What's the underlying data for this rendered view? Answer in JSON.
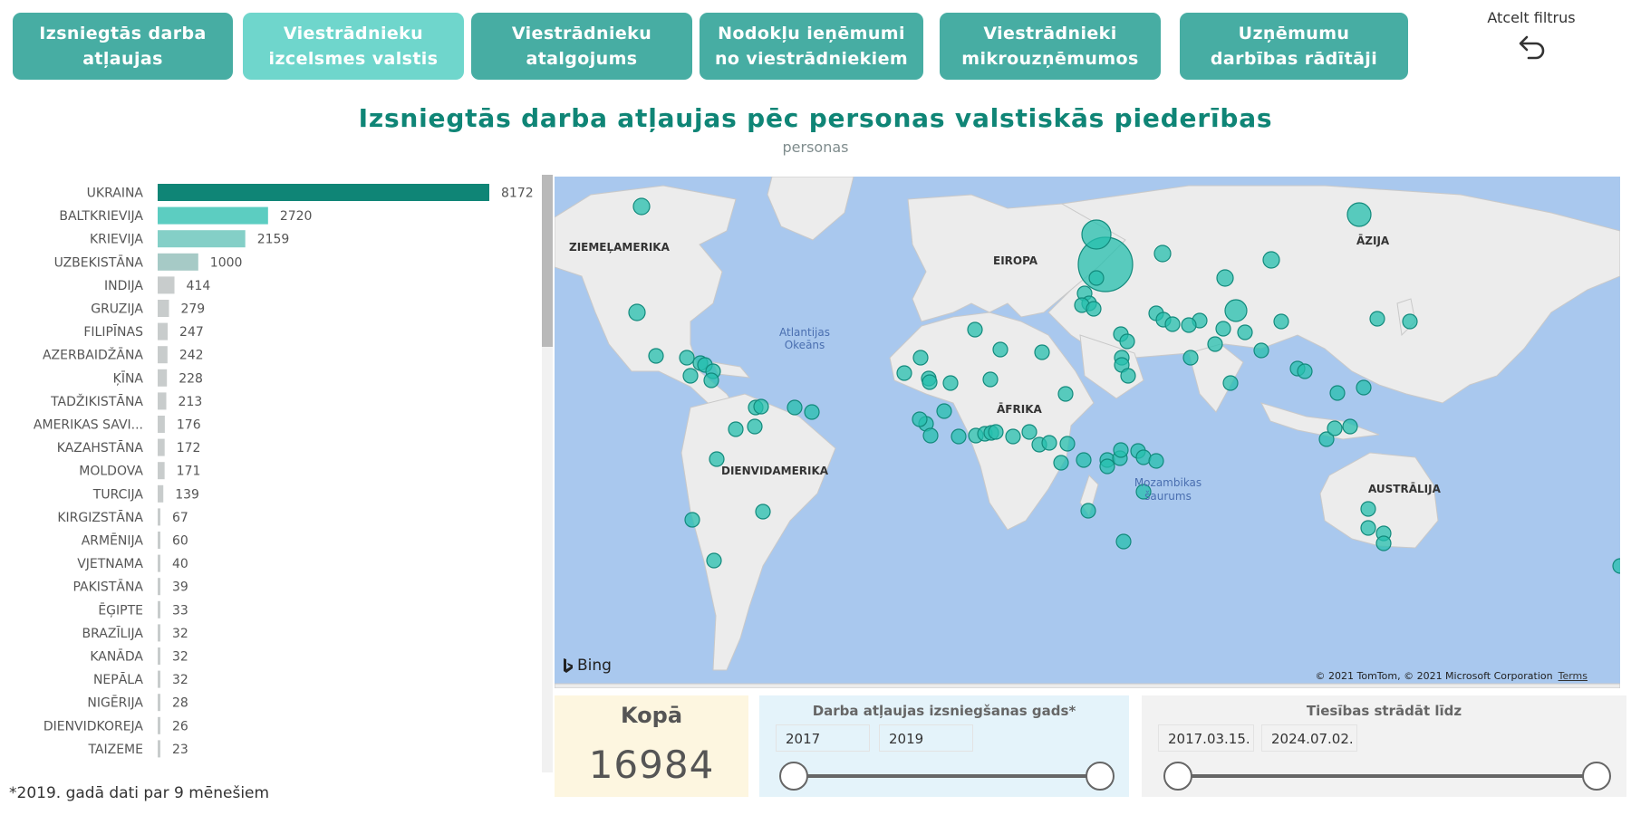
{
  "nav": {
    "tabs": [
      {
        "line1": "Izsniegtās darba",
        "line2": "atļaujas",
        "active": false
      },
      {
        "line1": "Viestrādnieku",
        "line2": "izcelsmes valstis",
        "active": true
      },
      {
        "line1": "Viestrādnieku",
        "line2": "atalgojums",
        "active": false
      },
      {
        "line1": "Nodokļu ieņēmumi",
        "line2": "no viestrādniekiem",
        "active": false
      },
      {
        "line1": "Viestrādnieki",
        "line2": "mikrouzņēmumos",
        "active": false
      },
      {
        "line1": "Uzņēmumu",
        "line2": "darbības rādītāji",
        "active": false
      }
    ],
    "reset_label": "Atcelt filtrus",
    "reset_icon": "undo-icon"
  },
  "header": {
    "title": "Izsniegtās darba atļaujas pēc personas valstiskās piederības",
    "subtitle": "personas"
  },
  "chart_data": {
    "type": "bar",
    "orientation": "horizontal",
    "categories": [
      "UKRAINA",
      "BALTKRIEVIJA",
      "KRIEVIJA",
      "UZBEKISTĀNA",
      "INDIJA",
      "GRUZIJA",
      "FILIPĪNAS",
      "AZERBAIDŽĀNA",
      "ĶĪNA",
      "TADŽIKISTĀNA",
      "AMERIKAS SAVI...",
      "KAZAHSTĀNA",
      "MOLDOVA",
      "TURCIJA",
      "KIRGIZSTĀNA",
      "ARMĒNIJA",
      "VJETNAMA",
      "PAKISTĀNA",
      "ĒĢIPTE",
      "BRAZĪLIJA",
      "KANĀDA",
      "NEPĀLA",
      "NIGĒRIJA",
      "DIENVIDKOREJA",
      "TAIZEME"
    ],
    "values": [
      8172,
      2720,
      2159,
      1000,
      414,
      279,
      247,
      242,
      228,
      213,
      176,
      172,
      171,
      139,
      67,
      60,
      40,
      39,
      33,
      32,
      32,
      32,
      28,
      26,
      23
    ],
    "colors": {
      "top": "#0f8576",
      "second": "#5ccdc1",
      "third": "#84cfc7",
      "fourth": "#a6cac6",
      "rest": "#c8cccc"
    }
  },
  "map": {
    "labels": {
      "north_america": "ZIEMEĻAMERIKA",
      "europe": "EIROPA",
      "asia": "ĀZIJA",
      "africa": "ĀFRIKA",
      "south_america": "DIENVIDAMERIKA",
      "australia": "AUSTRĀLIJA",
      "atlantic_1": "Atlantijas",
      "atlantic_2": "Okeāns",
      "mozambique_1": "Mozambikas",
      "mozambique_2": "šaurums"
    },
    "bing_label": "Bing",
    "copyright": "© 2021 TomTom, © 2021 Microsoft Corporation",
    "terms": "Terms",
    "colors": {
      "water": "#a9c8ee",
      "land": "#ececec",
      "bubble": "#26bfae",
      "bubble_stroke": "#128a7c"
    }
  },
  "total": {
    "label": "Kopā",
    "value": "16984"
  },
  "year_slicer": {
    "title": "Darba atļaujas izsniegšanas gads*",
    "from": "2017",
    "to": "2019"
  },
  "date_slicer": {
    "title": "Tiesības strādāt līdz",
    "from": "2017.03.15.",
    "to": "2024.07.02."
  },
  "footnote": "*2019. gadā dati par 9 mēnešiem"
}
